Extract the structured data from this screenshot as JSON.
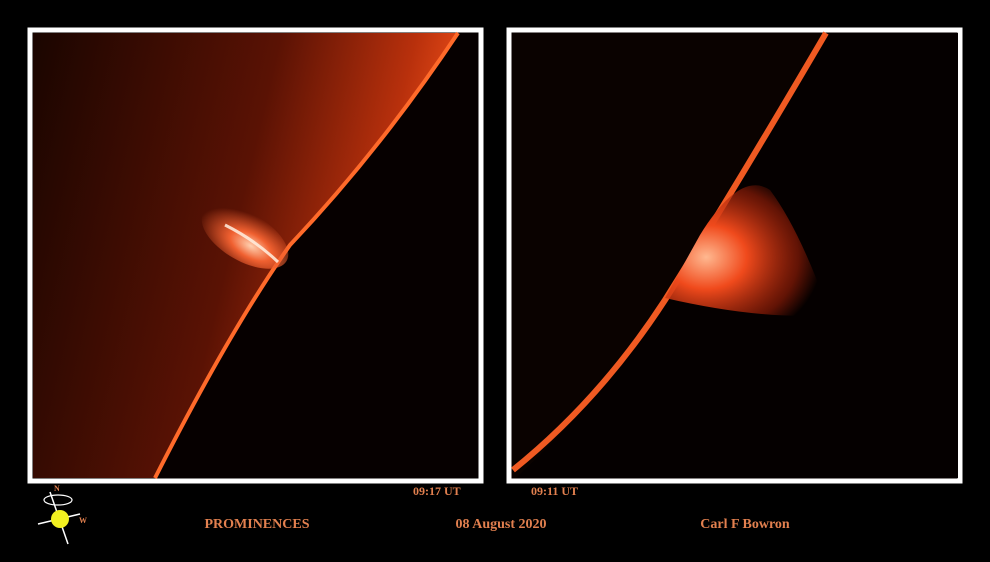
{
  "panels": [
    {
      "time": "09:17 UT"
    },
    {
      "time": "09:11 UT"
    }
  ],
  "compass": {
    "north": "N",
    "west": "W"
  },
  "footer": {
    "title": "PROMINENCES",
    "date": "08 August 2020",
    "author": "Carl F Bowron"
  }
}
